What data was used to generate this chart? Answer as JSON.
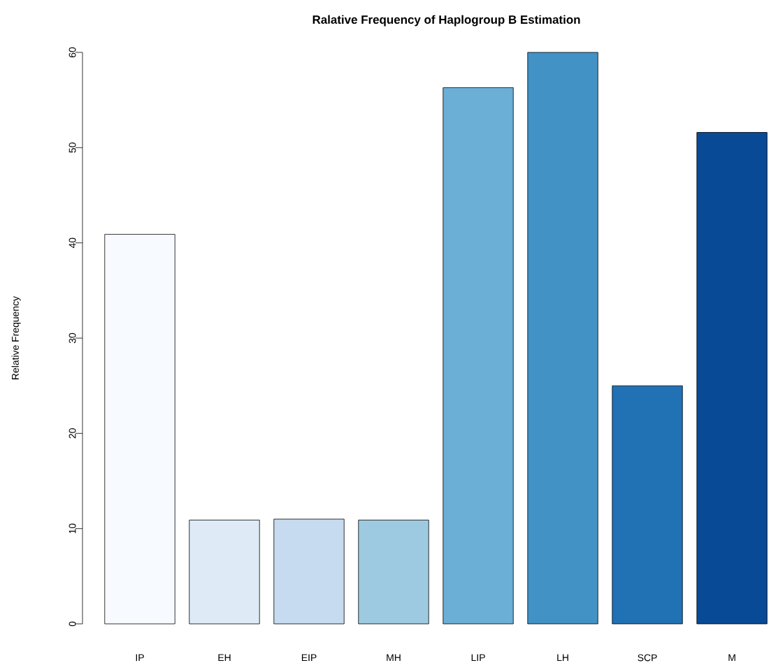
{
  "chart_data": {
    "type": "bar",
    "title": "Ralative Frequency of Haplogroup B Estimation",
    "ylabel": "Relative Frequency",
    "categories": [
      "IP",
      "EH",
      "EIP",
      "MH",
      "LIP",
      "LH",
      "SCP",
      "M"
    ],
    "values": [
      40.9,
      10.9,
      11.0,
      10.9,
      56.3,
      60.0,
      25.0,
      51.6
    ],
    "colors": [
      "#f7fbff",
      "#deebf7",
      "#c6dbef",
      "#9ecae1",
      "#6baed6",
      "#4292c6",
      "#2171b5",
      "#084a96"
    ],
    "ylim": [
      0,
      60
    ],
    "yticks": [
      0,
      10,
      20,
      30,
      40,
      50,
      60
    ]
  }
}
